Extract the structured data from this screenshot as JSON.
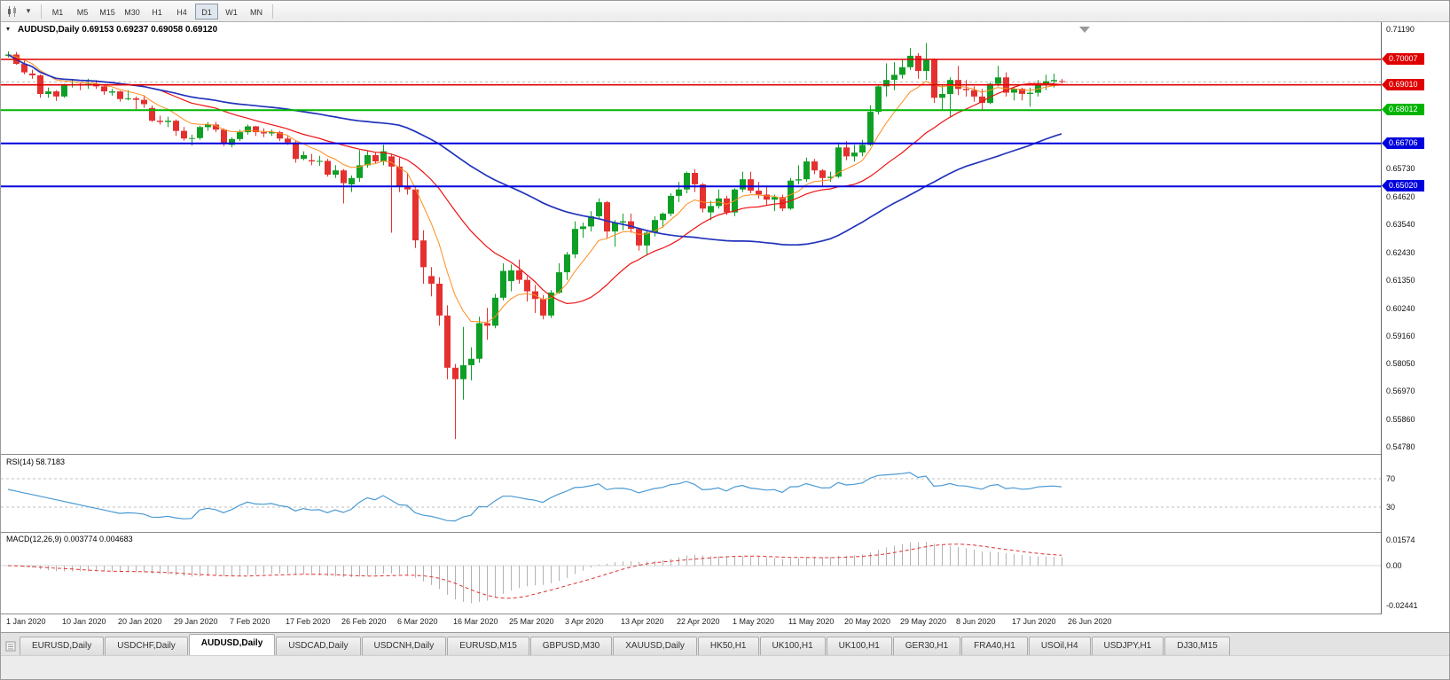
{
  "toolbar": {
    "timeframes": [
      "M1",
      "M5",
      "M15",
      "M30",
      "H1",
      "H4",
      "D1",
      "W1",
      "MN"
    ],
    "active_timeframe": "D1"
  },
  "chart_data": {
    "type": "candlestick",
    "symbol": "AUDUSD",
    "timeframe": "Daily",
    "title": "AUDUSD,Daily 0.69153 0.69237 0.69058 0.69120",
    "ohlc_display": {
      "open": "0.69153",
      "high": "0.69237",
      "low": "0.69058",
      "close": "0.69120"
    },
    "bid": 0.6912,
    "y_min": 0.5455,
    "y_max": 0.714,
    "up_color": "#0f9f26",
    "down_color": "#e53030",
    "price_axis_labels": [
      "0.71190",
      "0.65730",
      "0.64620",
      "0.63540",
      "0.62430",
      "0.61350",
      "0.60240",
      "0.59160",
      "0.58050",
      "0.56970",
      "0.55860",
      "0.54780"
    ],
    "x_labels": [
      "1 Jan 2020",
      "10 Jan 2020",
      "20 Jan 2020",
      "29 Jan 2020",
      "7 Feb 2020",
      "17 Feb 2020",
      "26 Feb 2020",
      "6 Mar 2020",
      "16 Mar 2020",
      "25 Mar 2020",
      "3 Apr 2020",
      "13 Apr 2020",
      "22 Apr 2020",
      "1 May 2020",
      "11 May 2020",
      "20 May 2020",
      "29 May 2020",
      "8 Jun 2020",
      "17 Jun 2020",
      "26 Jun 2020"
    ],
    "hlines": [
      {
        "value": 0.70007,
        "label": "0.70007",
        "color": "#e00000",
        "width": 1.6
      },
      {
        "value": 0.6901,
        "label": "0.69010",
        "color": "#e00000",
        "width": 1.6
      },
      {
        "value": 0.68012,
        "label": "0.68012",
        "color": "#00b400",
        "width": 2
      },
      {
        "value": 0.66706,
        "label": "0.66706",
        "color": "#0000dd",
        "width": 2
      },
      {
        "value": 0.6502,
        "label": "0.65020",
        "color": "#0000dd",
        "width": 2
      }
    ],
    "ma_lines": [
      {
        "name": "ema-fast-orange",
        "period": 8,
        "type": "ema",
        "color": "#ff8c1a",
        "width": 1
      },
      {
        "name": "sma-mid-red",
        "period": 20,
        "type": "sma",
        "color": "#ee1111",
        "width": 1.2
      },
      {
        "name": "sma-slow-blue",
        "period": 50,
        "type": "sma",
        "color": "#2233bb",
        "width": 1.7
      }
    ],
    "candles": [
      [
        0.7015,
        0.7032,
        0.7008,
        0.702
      ],
      [
        0.702,
        0.703,
        0.698,
        0.6983
      ],
      [
        0.6983,
        0.6995,
        0.6942,
        0.695
      ],
      [
        0.6945,
        0.696,
        0.6925,
        0.6938
      ],
      [
        0.6938,
        0.6942,
        0.685,
        0.6865
      ],
      [
        0.6865,
        0.689,
        0.685,
        0.6875
      ],
      [
        0.6875,
        0.688,
        0.6838,
        0.6855
      ],
      [
        0.6855,
        0.6905,
        0.685,
        0.69
      ],
      [
        0.69,
        0.692,
        0.689,
        0.6902
      ],
      [
        0.6902,
        0.691,
        0.688,
        0.6898
      ],
      [
        0.6898,
        0.6925,
        0.6885,
        0.6905
      ],
      [
        0.6905,
        0.692,
        0.6885,
        0.6895
      ],
      [
        0.6895,
        0.69,
        0.6862,
        0.6875
      ],
      [
        0.687,
        0.6885,
        0.6858,
        0.6875
      ],
      [
        0.6875,
        0.6878,
        0.6835,
        0.6845
      ],
      [
        0.6845,
        0.688,
        0.684,
        0.6848
      ],
      [
        0.6848,
        0.6855,
        0.6805,
        0.6842
      ],
      [
        0.6842,
        0.686,
        0.681,
        0.6825
      ],
      [
        0.681,
        0.682,
        0.6755,
        0.676
      ],
      [
        0.676,
        0.678,
        0.6745,
        0.6755
      ],
      [
        0.6755,
        0.6775,
        0.6735,
        0.676
      ],
      [
        0.676,
        0.6765,
        0.67,
        0.672
      ],
      [
        0.672,
        0.6735,
        0.6682,
        0.669
      ],
      [
        0.669,
        0.6705,
        0.6662,
        0.6692
      ],
      [
        0.6692,
        0.674,
        0.6685,
        0.6735
      ],
      [
        0.6735,
        0.6755,
        0.672,
        0.6745
      ],
      [
        0.6745,
        0.6755,
        0.6715,
        0.6725
      ],
      [
        0.6725,
        0.673,
        0.666,
        0.667
      ],
      [
        0.6665,
        0.6695,
        0.6655,
        0.6688
      ],
      [
        0.6688,
        0.6725,
        0.668,
        0.6715
      ],
      [
        0.6715,
        0.6745,
        0.6705,
        0.6738
      ],
      [
        0.6738,
        0.674,
        0.67,
        0.6715
      ],
      [
        0.6715,
        0.673,
        0.6695,
        0.671
      ],
      [
        0.671,
        0.6725,
        0.67,
        0.6715
      ],
      [
        0.6715,
        0.672,
        0.668,
        0.669
      ],
      [
        0.669,
        0.67,
        0.6665,
        0.6675
      ],
      [
        0.6675,
        0.668,
        0.6595,
        0.661
      ],
      [
        0.661,
        0.664,
        0.6605,
        0.6625
      ],
      [
        0.6605,
        0.663,
        0.6585,
        0.66
      ],
      [
        0.66,
        0.6622,
        0.6583,
        0.6602
      ],
      [
        0.6602,
        0.661,
        0.654,
        0.6548
      ],
      [
        0.6548,
        0.6585,
        0.6535,
        0.6565
      ],
      [
        0.6565,
        0.657,
        0.6435,
        0.6515
      ],
      [
        0.651,
        0.6545,
        0.648,
        0.6535
      ],
      [
        0.6535,
        0.6645,
        0.652,
        0.6585
      ],
      [
        0.6585,
        0.664,
        0.6575,
        0.6625
      ],
      [
        0.6625,
        0.6635,
        0.659,
        0.66
      ],
      [
        0.66,
        0.6665,
        0.6585,
        0.664
      ],
      [
        0.662,
        0.663,
        0.632,
        0.658
      ],
      [
        0.658,
        0.6615,
        0.648,
        0.65
      ],
      [
        0.65,
        0.6555,
        0.647,
        0.649
      ],
      [
        0.649,
        0.65,
        0.626,
        0.629
      ],
      [
        0.629,
        0.633,
        0.612,
        0.6185
      ],
      [
        0.615,
        0.6185,
        0.607,
        0.612
      ],
      [
        0.612,
        0.6145,
        0.5955,
        0.5995
      ],
      [
        0.5995,
        0.6035,
        0.5745,
        0.579
      ],
      [
        0.579,
        0.5805,
        0.551,
        0.5745
      ],
      [
        0.5745,
        0.595,
        0.5665,
        0.58
      ],
      [
        0.58,
        0.587,
        0.574,
        0.5825
      ],
      [
        0.5825,
        0.599,
        0.581,
        0.5965
      ],
      [
        0.5965,
        0.6025,
        0.59,
        0.5955
      ],
      [
        0.5955,
        0.608,
        0.5945,
        0.6065
      ],
      [
        0.6065,
        0.62,
        0.6055,
        0.617
      ],
      [
        0.613,
        0.6195,
        0.609,
        0.6172
      ],
      [
        0.6172,
        0.6215,
        0.612,
        0.6135
      ],
      [
        0.6135,
        0.615,
        0.605,
        0.609
      ],
      [
        0.609,
        0.6115,
        0.6005,
        0.606
      ],
      [
        0.606,
        0.6075,
        0.598,
        0.5995
      ],
      [
        0.5995,
        0.6095,
        0.5985,
        0.6085
      ],
      [
        0.6085,
        0.62,
        0.608,
        0.6165
      ],
      [
        0.6165,
        0.6245,
        0.6135,
        0.6235
      ],
      [
        0.6235,
        0.6365,
        0.622,
        0.6335
      ],
      [
        0.6335,
        0.636,
        0.63,
        0.6345
      ],
      [
        0.6345,
        0.6405,
        0.6325,
        0.6385
      ],
      [
        0.6385,
        0.6455,
        0.6375,
        0.644
      ],
      [
        0.644,
        0.6445,
        0.63,
        0.6325
      ],
      [
        0.6325,
        0.637,
        0.6265,
        0.636
      ],
      [
        0.636,
        0.6395,
        0.633,
        0.6365
      ],
      [
        0.6365,
        0.6395,
        0.632,
        0.6335
      ],
      [
        0.6335,
        0.634,
        0.625,
        0.627
      ],
      [
        0.627,
        0.633,
        0.623,
        0.632
      ],
      [
        0.632,
        0.6385,
        0.6305,
        0.637
      ],
      [
        0.637,
        0.64,
        0.634,
        0.6395
      ],
      [
        0.6395,
        0.6475,
        0.6385,
        0.6465
      ],
      [
        0.6465,
        0.652,
        0.644,
        0.649
      ],
      [
        0.649,
        0.656,
        0.6475,
        0.6555
      ],
      [
        0.6555,
        0.657,
        0.648,
        0.651
      ],
      [
        0.651,
        0.6515,
        0.64,
        0.6415
      ],
      [
        0.64,
        0.6445,
        0.637,
        0.6425
      ],
      [
        0.6425,
        0.649,
        0.6415,
        0.6455
      ],
      [
        0.6455,
        0.6465,
        0.639,
        0.64
      ],
      [
        0.64,
        0.6495,
        0.6385,
        0.649
      ],
      [
        0.649,
        0.656,
        0.648,
        0.653
      ],
      [
        0.653,
        0.656,
        0.6475,
        0.6485
      ],
      [
        0.6485,
        0.652,
        0.6455,
        0.647
      ],
      [
        0.647,
        0.6505,
        0.643,
        0.645
      ],
      [
        0.645,
        0.647,
        0.6405,
        0.646
      ],
      [
        0.646,
        0.647,
        0.6405,
        0.6415
      ],
      [
        0.6415,
        0.6535,
        0.641,
        0.6525
      ],
      [
        0.6525,
        0.6585,
        0.651,
        0.653
      ],
      [
        0.653,
        0.6615,
        0.652,
        0.66
      ],
      [
        0.66,
        0.661,
        0.655,
        0.6565
      ],
      [
        0.6565,
        0.657,
        0.6505,
        0.6535
      ],
      [
        0.6535,
        0.656,
        0.652,
        0.654
      ],
      [
        0.654,
        0.6675,
        0.6535,
        0.6655
      ],
      [
        0.6655,
        0.668,
        0.6605,
        0.662
      ],
      [
        0.662,
        0.6665,
        0.66,
        0.6635
      ],
      [
        0.6635,
        0.6685,
        0.662,
        0.6665
      ],
      [
        0.6665,
        0.682,
        0.666,
        0.6795
      ],
      [
        0.6795,
        0.69,
        0.6785,
        0.6895
      ],
      [
        0.6895,
        0.6985,
        0.6855,
        0.692
      ],
      [
        0.692,
        0.699,
        0.688,
        0.694
      ],
      [
        0.694,
        0.7,
        0.6925,
        0.697
      ],
      [
        0.697,
        0.7045,
        0.696,
        0.7015
      ],
      [
        0.7015,
        0.7025,
        0.6925,
        0.6955
      ],
      [
        0.6955,
        0.7065,
        0.692,
        0.7
      ],
      [
        0.7,
        0.7005,
        0.683,
        0.685
      ],
      [
        0.685,
        0.69,
        0.68,
        0.6865
      ],
      [
        0.6865,
        0.693,
        0.6775,
        0.692
      ],
      [
        0.692,
        0.6975,
        0.686,
        0.6885
      ],
      [
        0.6885,
        0.692,
        0.6855,
        0.688
      ],
      [
        0.688,
        0.6895,
        0.6835,
        0.6855
      ],
      [
        0.6855,
        0.6885,
        0.68,
        0.683
      ],
      [
        0.683,
        0.691,
        0.6825,
        0.6905
      ],
      [
        0.6905,
        0.6975,
        0.6895,
        0.693
      ],
      [
        0.693,
        0.695,
        0.6855,
        0.687
      ],
      [
        0.687,
        0.6895,
        0.684,
        0.6885
      ],
      [
        0.6885,
        0.689,
        0.684,
        0.6865
      ],
      [
        0.6865,
        0.689,
        0.6815,
        0.687
      ],
      [
        0.687,
        0.692,
        0.6855,
        0.6905
      ],
      [
        0.6905,
        0.694,
        0.688,
        0.6915
      ],
      [
        0.6915,
        0.6945,
        0.689,
        0.692
      ],
      [
        0.69153,
        0.69237,
        0.69058,
        0.6912
      ]
    ],
    "rsi": {
      "label": "RSI(14) 58.7183",
      "period": 14,
      "current": "58.7183",
      "levels": [
        "70",
        "30"
      ],
      "color": "#4a9ad4"
    },
    "macd": {
      "label": "MACD(12,26,9) 0.003774 0.004683",
      "fast": 12,
      "slow": 26,
      "signal": 9,
      "current_main": "0.003774",
      "current_signal": "0.004683",
      "axis_labels": [
        "0.01574",
        "0.00",
        "-0.02441"
      ],
      "axis_max": 0.01574,
      "axis_min": -0.02441,
      "hist_color": "#b2b2b2",
      "signal_color": "#e03030"
    }
  },
  "tabs": {
    "items": [
      {
        "label": "EURUSD,Daily",
        "active": false
      },
      {
        "label": "USDCHF,Daily",
        "active": false
      },
      {
        "label": "AUDUSD,Daily",
        "active": true
      },
      {
        "label": "USDCAD,Daily",
        "active": false
      },
      {
        "label": "USDCNH,Daily",
        "active": false
      },
      {
        "label": "EURUSD,M15",
        "active": false
      },
      {
        "label": "GBPUSD,M30",
        "active": false
      },
      {
        "label": "XAUUSD,Daily",
        "active": false
      },
      {
        "label": "HK50,H1",
        "active": false
      },
      {
        "label": "UK100,H1",
        "active": false
      },
      {
        "label": "UK100,H1",
        "active": false
      },
      {
        "label": "GER30,H1",
        "active": false
      },
      {
        "label": "FRA40,H1",
        "active": false
      },
      {
        "label": "USOil,H4",
        "active": false
      },
      {
        "label": "USDJPY,H1",
        "active": false
      },
      {
        "label": "DJ30,M15",
        "active": false
      }
    ]
  }
}
